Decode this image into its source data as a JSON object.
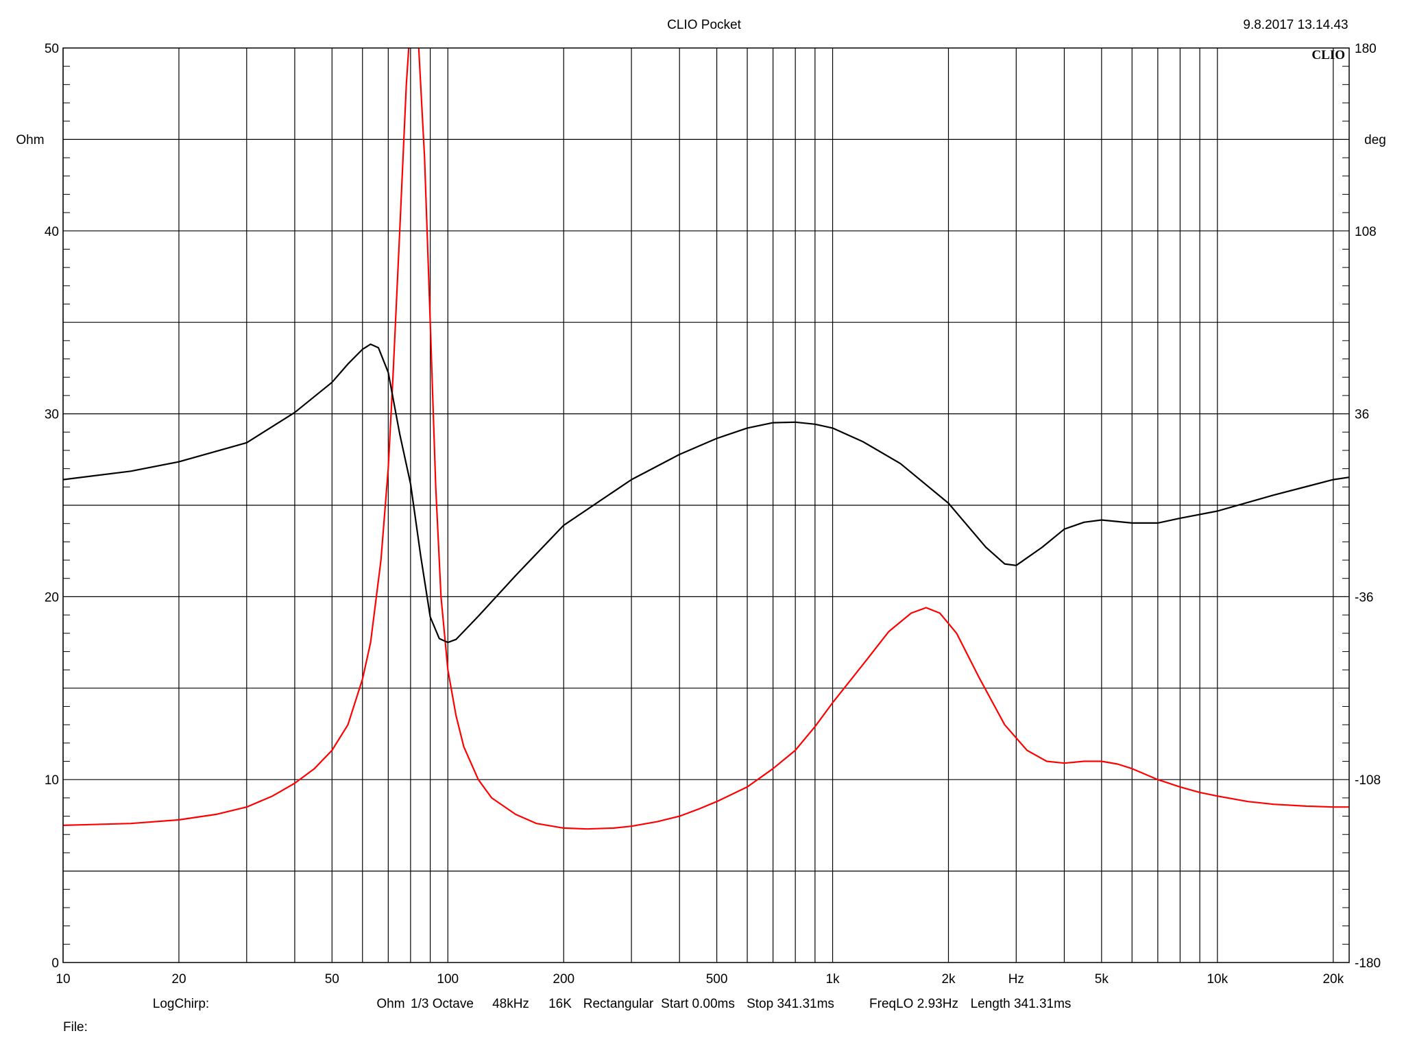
{
  "header": {
    "title": "CLIO Pocket",
    "timestamp": "9.8.2017 13.14.43",
    "logo": "CLIO"
  },
  "footer": {
    "params": [
      "LogChirp:",
      "Ohm",
      "1/3 Octave",
      "48kHz",
      "16K",
      "Rectangular",
      "Start 0.00ms",
      "Stop 341.31ms",
      "FreqLO 2.93Hz",
      "Length 341.31ms"
    ],
    "file_label": "File:"
  },
  "chart_data": {
    "type": "line",
    "xscale": "log",
    "xlim": [
      10,
      22000
    ],
    "xlabel": "Hz",
    "x_ticks": [
      {
        "value": 10,
        "label": "10"
      },
      {
        "value": 20,
        "label": "20"
      },
      {
        "value": 50,
        "label": "50"
      },
      {
        "value": 100,
        "label": "100"
      },
      {
        "value": 200,
        "label": "200"
      },
      {
        "value": 500,
        "label": "500"
      },
      {
        "value": 1000,
        "label": "1k"
      },
      {
        "value": 2000,
        "label": "2k"
      },
      {
        "value": 3000,
        "label": "Hz"
      },
      {
        "value": 5000,
        "label": "5k"
      },
      {
        "value": 10000,
        "label": "10k"
      },
      {
        "value": 20000,
        "label": "20k"
      }
    ],
    "ylim_left": [
      0,
      50
    ],
    "ylabel_left": "Ohm",
    "y_ticks_left": [
      {
        "value": 0,
        "label": "0"
      },
      {
        "value": 10,
        "label": "10"
      },
      {
        "value": 20,
        "label": "20"
      },
      {
        "value": 30,
        "label": "30"
      },
      {
        "value": 40,
        "label": "40"
      },
      {
        "value": 50,
        "label": "50"
      }
    ],
    "ylim_right": [
      -180,
      180
    ],
    "ylabel_right": "deg",
    "y_ticks_right": [
      {
        "value": -180,
        "label": "-180"
      },
      {
        "value": -108,
        "label": "-108"
      },
      {
        "value": -36,
        "label": "-36"
      },
      {
        "value": 36,
        "label": "36"
      },
      {
        "value": 108,
        "label": "108"
      },
      {
        "value": 180,
        "label": "180"
      }
    ],
    "grid": true,
    "series": [
      {
        "color": "#ff0000",
        "axis": "left",
        "points": [
          [
            10,
            7.5
          ],
          [
            15,
            7.6
          ],
          [
            20,
            7.8
          ],
          [
            25,
            8.1
          ],
          [
            30,
            8.5
          ],
          [
            35,
            9.1
          ],
          [
            40,
            9.8
          ],
          [
            45,
            10.6
          ],
          [
            50,
            11.6
          ],
          [
            55,
            13.0
          ],
          [
            60,
            15.5
          ],
          [
            63,
            17.5
          ],
          [
            67,
            22.0
          ],
          [
            70,
            27.0
          ],
          [
            72,
            32.0
          ],
          [
            75,
            40.0
          ],
          [
            78,
            48.0
          ],
          [
            80,
            51.5
          ],
          [
            82,
            52.0
          ],
          [
            84,
            50.0
          ],
          [
            87,
            44.0
          ],
          [
            90,
            35.0
          ],
          [
            93,
            26.0
          ],
          [
            96,
            20.0
          ],
          [
            100,
            16.0
          ],
          [
            105,
            13.5
          ],
          [
            110,
            11.8
          ],
          [
            120,
            10.0
          ],
          [
            130,
            9.0
          ],
          [
            150,
            8.1
          ],
          [
            170,
            7.6
          ],
          [
            200,
            7.35
          ],
          [
            230,
            7.3
          ],
          [
            270,
            7.35
          ],
          [
            300,
            7.45
          ],
          [
            350,
            7.7
          ],
          [
            400,
            8.0
          ],
          [
            450,
            8.4
          ],
          [
            500,
            8.8
          ],
          [
            600,
            9.6
          ],
          [
            700,
            10.6
          ],
          [
            800,
            11.6
          ],
          [
            900,
            12.9
          ],
          [
            1000,
            14.2
          ],
          [
            1200,
            16.3
          ],
          [
            1400,
            18.1
          ],
          [
            1600,
            19.1
          ],
          [
            1750,
            19.4
          ],
          [
            1900,
            19.1
          ],
          [
            2100,
            18.0
          ],
          [
            2400,
            15.6
          ],
          [
            2800,
            13.0
          ],
          [
            3200,
            11.6
          ],
          [
            3600,
            11.0
          ],
          [
            4000,
            10.9
          ],
          [
            4500,
            11.0
          ],
          [
            5000,
            11.0
          ],
          [
            5500,
            10.85
          ],
          [
            6000,
            10.6
          ],
          [
            7000,
            10.0
          ],
          [
            8000,
            9.6
          ],
          [
            9000,
            9.3
          ],
          [
            10000,
            9.1
          ],
          [
            12000,
            8.8
          ],
          [
            14000,
            8.65
          ],
          [
            17000,
            8.55
          ],
          [
            20000,
            8.5
          ],
          [
            22000,
            8.5
          ]
        ]
      },
      {
        "color": "#000000",
        "axis": "right",
        "points": [
          [
            10,
            10.1
          ],
          [
            15,
            13.4
          ],
          [
            20,
            17.1
          ],
          [
            30,
            24.6
          ],
          [
            40,
            36.5
          ],
          [
            50,
            48.4
          ],
          [
            55,
            55.6
          ],
          [
            60,
            61.4
          ],
          [
            63,
            63.4
          ],
          [
            66,
            62.0
          ],
          [
            70,
            52.3
          ],
          [
            75,
            28.0
          ],
          [
            80,
            8.4
          ],
          [
            85,
            -20.0
          ],
          [
            90,
            -44.0
          ],
          [
            95,
            -52.5
          ],
          [
            100,
            -54.0
          ],
          [
            105,
            -52.8
          ],
          [
            120,
            -43.7
          ],
          [
            150,
            -27.7
          ],
          [
            200,
            -7.9
          ],
          [
            300,
            10.1
          ],
          [
            400,
            20.0
          ],
          [
            500,
            26.3
          ],
          [
            600,
            30.4
          ],
          [
            700,
            32.5
          ],
          [
            800,
            32.7
          ],
          [
            900,
            31.9
          ],
          [
            1000,
            30.4
          ],
          [
            1200,
            25.0
          ],
          [
            1500,
            16.4
          ],
          [
            2000,
            0.8
          ],
          [
            2500,
            -16.5
          ],
          [
            2800,
            -23.1
          ],
          [
            3000,
            -23.7
          ],
          [
            3500,
            -16.6
          ],
          [
            4000,
            -9.4
          ],
          [
            4500,
            -6.7
          ],
          [
            5000,
            -5.8
          ],
          [
            6000,
            -7.0
          ],
          [
            7000,
            -7.0
          ],
          [
            8000,
            -5.1
          ],
          [
            10000,
            -2.3
          ],
          [
            14000,
            4.0
          ],
          [
            20000,
            10.1
          ],
          [
            22000,
            11.0
          ]
        ]
      }
    ]
  }
}
